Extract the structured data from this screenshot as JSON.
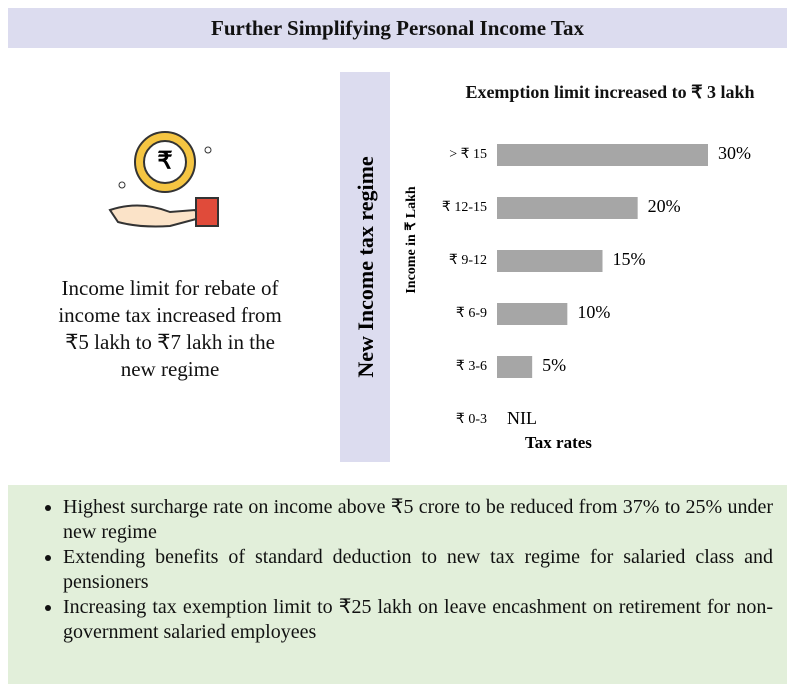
{
  "header": {
    "title": "Further Simplifying Personal Income Tax"
  },
  "left": {
    "text": "Income limit for rebate of income tax increased from ₹5 lakh to ₹7 lakh in the new regime"
  },
  "sidebar": {
    "label": "New Income tax regime"
  },
  "chart_data": {
    "type": "hbar",
    "title": "Exemption limit  increased to ₹ 3 lakh",
    "y_label": "Income in ₹ Lakh",
    "x_label": "Tax rates",
    "categories": [
      "> ₹ 15",
      "₹ 12-15",
      "₹ 9-12",
      "₹ 6-9",
      "₹ 3-6",
      "₹ 0-3"
    ],
    "values": [
      30,
      20,
      15,
      10,
      5,
      0
    ],
    "value_labels": [
      "30%",
      "20%",
      "15%",
      "10%",
      "5%",
      "NIL"
    ],
    "color": "#a6a6a6",
    "xlim": [
      0,
      30
    ]
  },
  "bullets": [
    "Highest surcharge rate on income above ₹5 crore to be reduced from 37% to 25% under new regime",
    "Extending benefits of standard deduction to new tax regime for salaried class and pensioners",
    "Increasing tax exemption limit to ₹25 lakh on leave encashment on retirement for non-government salaried employees"
  ]
}
